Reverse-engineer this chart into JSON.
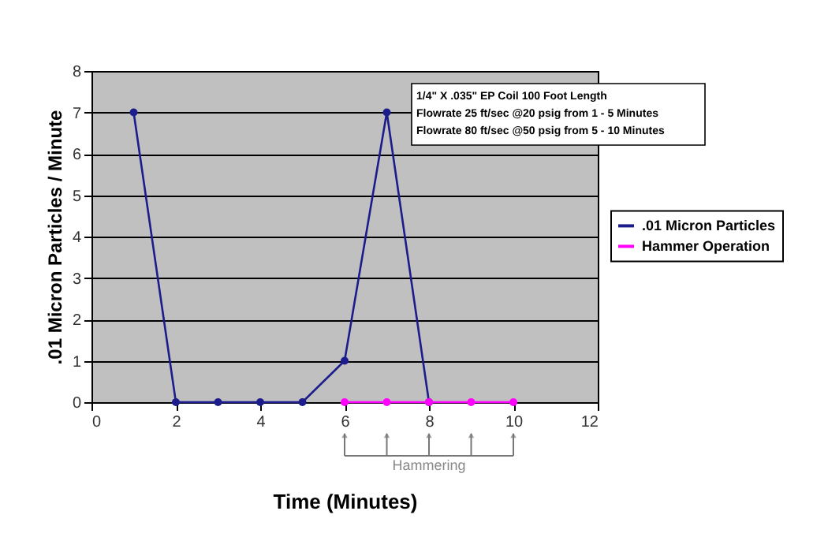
{
  "chart_data": {
    "type": "line",
    "xlabel": "Time (Minutes)",
    "ylabel": ".01 Micron Particles / Minute",
    "series": [
      {
        "name": ".01 Micron Particles",
        "color": "#1c1c8c",
        "x": [
          1,
          2,
          3,
          4,
          5,
          6,
          7,
          8
        ],
        "values": [
          7,
          0,
          0,
          0,
          0,
          1,
          7,
          0
        ]
      },
      {
        "name": "Hammer Operation",
        "color": "#ff00ff",
        "x": [
          6,
          7,
          8,
          9,
          10
        ],
        "values": [
          0,
          0,
          0,
          0,
          0
        ]
      }
    ],
    "xlim": [
      0,
      12
    ],
    "xticks": [
      0,
      2,
      4,
      6,
      8,
      10,
      12
    ],
    "ylim": [
      0,
      8
    ],
    "yticks": [
      0,
      1,
      2,
      3,
      4,
      5,
      6,
      7,
      8
    ],
    "grid": "y",
    "legend": "right",
    "marker": "circle",
    "line_style": "solid",
    "annotations": [
      "1/4\" X .035\" EP Coil 100 Foot Length",
      "Flowrate 25 ft/sec @20 psig  from  1 - 5 Minutes",
      "Flowrate 80 ft/sec @50 psig  from 5 - 10 Minutes",
      {
        "text": "Hammering",
        "x": 8
      }
    ]
  }
}
